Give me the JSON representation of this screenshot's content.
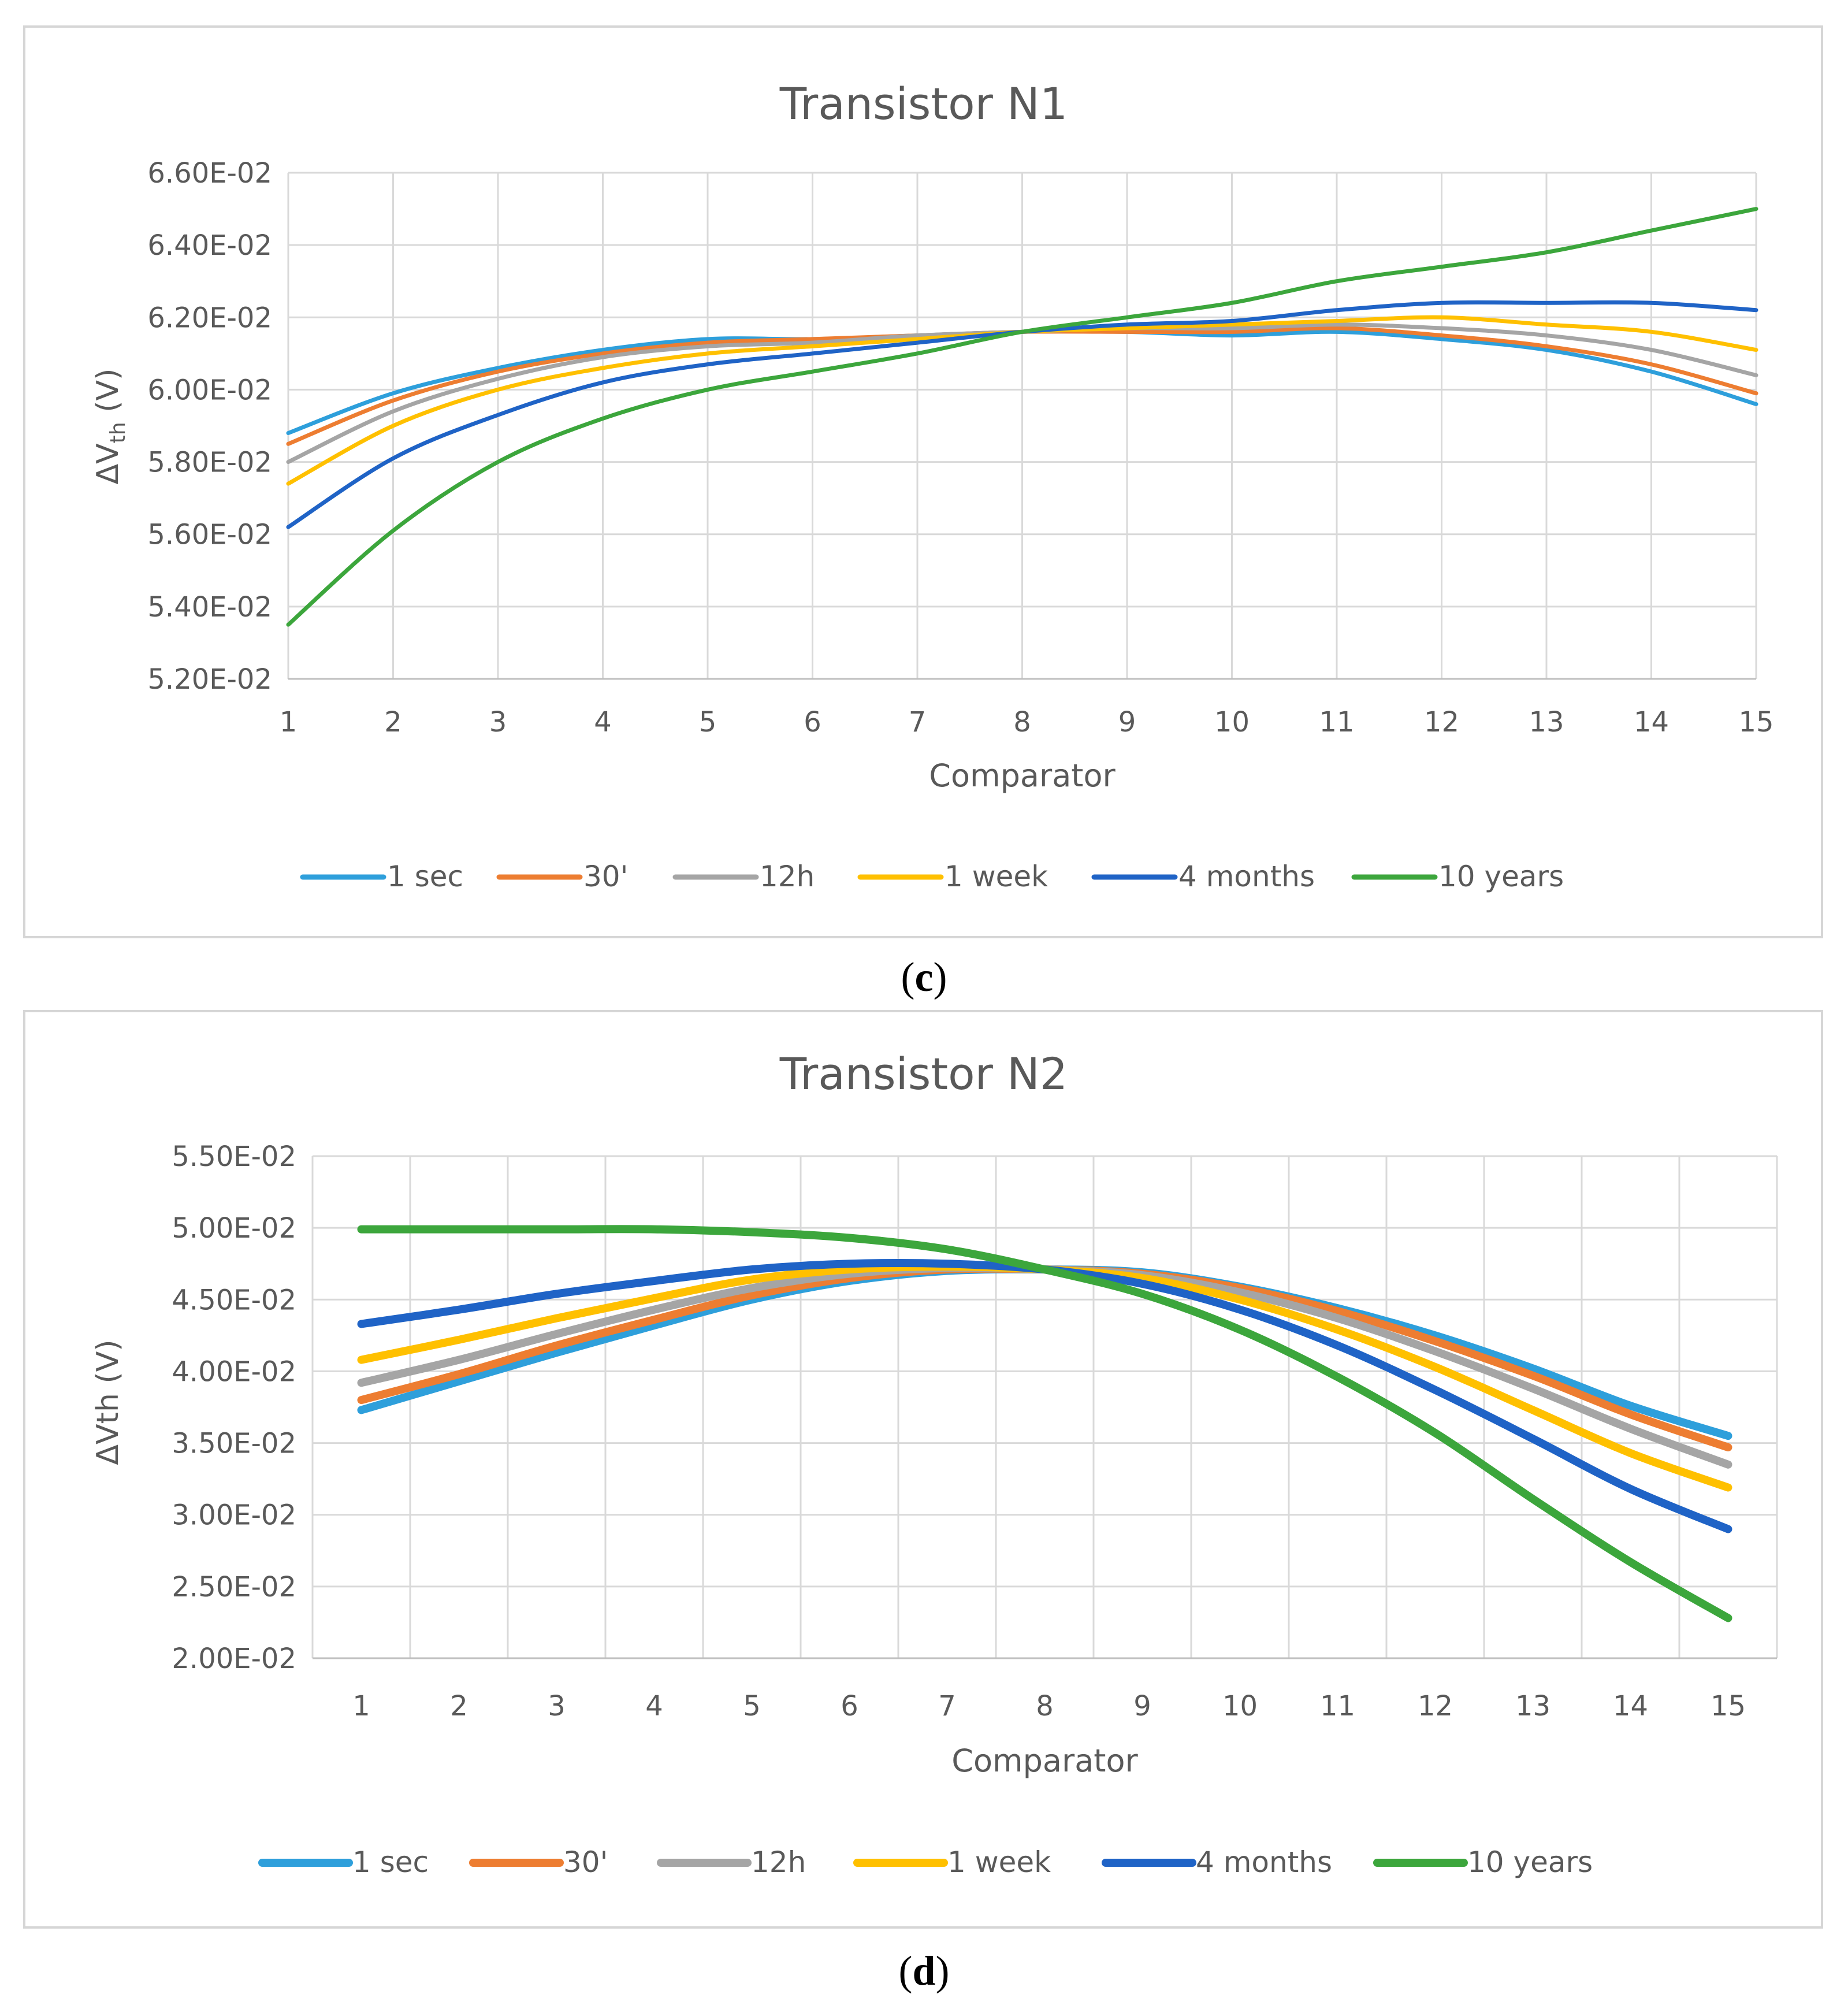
{
  "chart_data": [
    {
      "type": "line",
      "panel": "c",
      "title": "Transistor N1",
      "xlabel": "Comparator",
      "ylabel_main": "ΔV",
      "ylabel_sub": "th",
      "ylabel_unit": " (V)",
      "x": [
        1,
        2,
        3,
        4,
        5,
        6,
        7,
        8,
        9,
        10,
        11,
        12,
        13,
        14,
        15
      ],
      "ylim": [
        0.052,
        0.066
      ],
      "yticks": [
        0.052,
        0.054,
        0.056,
        0.058,
        0.06,
        0.062,
        0.064,
        0.066
      ],
      "ytick_labels": [
        "5.20E-02",
        "5.40E-02",
        "5.60E-02",
        "5.80E-02",
        "6.00E-02",
        "6.20E-02",
        "6.40E-02",
        "6.60E-02"
      ],
      "grid": true,
      "legend": "bottom",
      "series": [
        {
          "name": "1 sec",
          "color": "#2E9FDB",
          "values": [
            0.0588,
            0.0599,
            0.0606,
            0.0611,
            0.0614,
            0.0614,
            0.0615,
            0.0616,
            0.0616,
            0.0615,
            0.0616,
            0.0614,
            0.0611,
            0.0605,
            0.0596
          ]
        },
        {
          "name": "30'",
          "color": "#ED7D31",
          "values": [
            0.0585,
            0.0597,
            0.0605,
            0.061,
            0.0613,
            0.0614,
            0.0615,
            0.0616,
            0.0616,
            0.0616,
            0.0617,
            0.0615,
            0.0612,
            0.0607,
            0.0599
          ]
        },
        {
          "name": "12h",
          "color": "#A5A5A5",
          "values": [
            0.058,
            0.0594,
            0.0603,
            0.0609,
            0.0612,
            0.0613,
            0.0615,
            0.0616,
            0.0617,
            0.0617,
            0.0618,
            0.0617,
            0.0615,
            0.0611,
            0.0604
          ]
        },
        {
          "name": "1 week",
          "color": "#FFC000",
          "values": [
            0.0574,
            0.059,
            0.06,
            0.0606,
            0.061,
            0.0612,
            0.0614,
            0.0616,
            0.0617,
            0.0618,
            0.0619,
            0.062,
            0.0618,
            0.0616,
            0.0611
          ]
        },
        {
          "name": "4 months",
          "color": "#1F63C6",
          "values": [
            0.0562,
            0.0581,
            0.0593,
            0.0602,
            0.0607,
            0.061,
            0.0613,
            0.0616,
            0.0618,
            0.0619,
            0.0622,
            0.0624,
            0.0624,
            0.0624,
            0.0622
          ]
        },
        {
          "name": "10 years",
          "color": "#3CA63C",
          "values": [
            0.0535,
            0.0561,
            0.058,
            0.0592,
            0.06,
            0.0605,
            0.061,
            0.0616,
            0.062,
            0.0624,
            0.063,
            0.0634,
            0.0638,
            0.0644,
            0.065
          ]
        }
      ]
    },
    {
      "type": "line",
      "panel": "d",
      "title": "Transistor N2",
      "xlabel": "Comparator",
      "ylabel_main": "ΔVth",
      "ylabel_sub": "",
      "ylabel_unit": " (V)",
      "x": [
        1,
        2,
        3,
        4,
        5,
        6,
        7,
        8,
        9,
        10,
        11,
        12,
        13,
        14,
        15
      ],
      "ylim": [
        0.02,
        0.055
      ],
      "yticks": [
        0.02,
        0.025,
        0.03,
        0.035,
        0.04,
        0.045,
        0.05,
        0.055
      ],
      "ytick_labels": [
        "2.00E-02",
        "2.50E-02",
        "3.00E-02",
        "3.50E-02",
        "4.00E-02",
        "4.50E-02",
        "5.00E-02",
        "5.50E-02"
      ],
      "grid": true,
      "legend": "bottom",
      "series": [
        {
          "name": "1 sec",
          "color": "#2E9FDB",
          "values": [
            0.0373,
            0.0393,
            0.0413,
            0.0432,
            0.045,
            0.0463,
            0.047,
            0.0471,
            0.0469,
            0.0459,
            0.0444,
            0.0425,
            0.0402,
            0.0376,
            0.0355
          ]
        },
        {
          "name": "30'",
          "color": "#ED7D31",
          "values": [
            0.038,
            0.0398,
            0.0418,
            0.0436,
            0.0453,
            0.0465,
            0.0471,
            0.0471,
            0.0468,
            0.0458,
            0.0442,
            0.0421,
            0.0397,
            0.037,
            0.0347
          ]
        },
        {
          "name": "12h",
          "color": "#A5A5A5",
          "values": [
            0.0392,
            0.0408,
            0.0426,
            0.0443,
            0.0458,
            0.0468,
            0.0472,
            0.0471,
            0.0467,
            0.0455,
            0.0437,
            0.0414,
            0.0388,
            0.036,
            0.0335
          ]
        },
        {
          "name": "1 week",
          "color": "#FFC000",
          "values": [
            0.0408,
            0.0422,
            0.0437,
            0.0451,
            0.0464,
            0.0471,
            0.0473,
            0.0471,
            0.0465,
            0.045,
            0.0429,
            0.0403,
            0.0373,
            0.0343,
            0.0319
          ]
        },
        {
          "name": "4 months",
          "color": "#1F63C6",
          "values": [
            0.0433,
            0.0443,
            0.0454,
            0.0463,
            0.0471,
            0.0475,
            0.0475,
            0.0471,
            0.0461,
            0.0443,
            0.0418,
            0.0387,
            0.0353,
            0.0318,
            0.029
          ]
        },
        {
          "name": "10 years",
          "color": "#3CA63C",
          "values": [
            0.0499,
            0.0499,
            0.0499,
            0.0499,
            0.0497,
            0.0493,
            0.0485,
            0.0471,
            0.0454,
            0.0429,
            0.0396,
            0.0357,
            0.0311,
            0.0267,
            0.0228
          ]
        }
      ]
    }
  ],
  "captions": {
    "c": "c",
    "d": "d"
  }
}
